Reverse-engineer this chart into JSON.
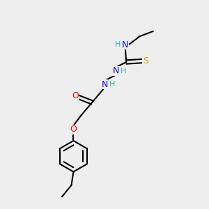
{
  "bg_color": "#eeeeee",
  "bond_color": "#000000",
  "atom_colors": {
    "H": "#2ab5b5",
    "N": "#0000ff",
    "O": "#ff0000",
    "S": "#ccaa00",
    "C": "#000000"
  },
  "figsize": [
    3.0,
    3.0
  ],
  "dpi": 100
}
